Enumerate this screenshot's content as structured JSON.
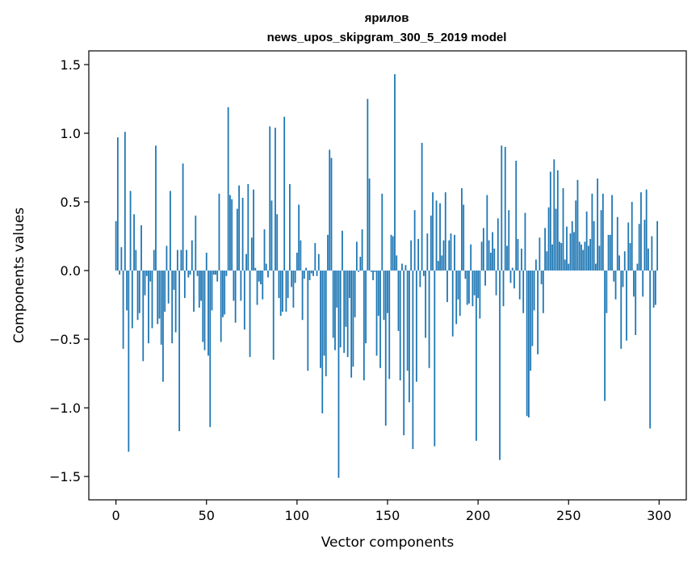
{
  "chart_data": {
    "type": "bar",
    "title": "ярилов",
    "subtitle": "news_upos_skipgram_300_5_2019 model",
    "xlabel": "Vector components",
    "ylabel": "Components values",
    "xlim": [
      -15,
      315
    ],
    "ylim": [
      -1.67,
      1.6
    ],
    "xticks": [
      0,
      50,
      100,
      150,
      200,
      250,
      300
    ],
    "yticks": [
      -1.5,
      -1.0,
      -0.5,
      0.0,
      0.5,
      1.0,
      1.5
    ],
    "ytick_labels": [
      "−1.5",
      "−1.0",
      "−0.5",
      "0.0",
      "0.5",
      "1.0",
      "1.5"
    ],
    "grid": false,
    "bar_color": "#1f77b4",
    "values": [
      0.36,
      0.97,
      -0.03,
      0.17,
      -0.57,
      1.01,
      -0.29,
      -1.32,
      0.58,
      -0.42,
      0.41,
      0.15,
      -0.36,
      -0.31,
      0.33,
      -0.66,
      -0.18,
      -0.04,
      -0.53,
      -0.08,
      -0.42,
      0.15,
      0.91,
      -0.39,
      -0.35,
      -0.54,
      -0.81,
      -0.3,
      0.18,
      -0.24,
      0.58,
      -0.53,
      -0.14,
      -0.45,
      0.15,
      -1.17,
      0.15,
      0.78,
      -0.2,
      0.15,
      -0.05,
      -0.03,
      0.22,
      -0.3,
      0.4,
      -0.04,
      -0.27,
      -0.22,
      -0.52,
      -0.58,
      0.13,
      -0.62,
      -1.14,
      -0.29,
      -0.03,
      -0.03,
      -0.08,
      0.56,
      -0.52,
      -0.34,
      -0.32,
      -0.04,
      1.19,
      0.55,
      0.52,
      -0.22,
      -0.38,
      0.45,
      0.62,
      -0.22,
      0.53,
      -0.43,
      0.12,
      0.63,
      -0.63,
      0.24,
      0.59,
      0.02,
      -0.25,
      -0.08,
      -0.1,
      -0.21,
      0.3,
      0.05,
      -0.05,
      1.05,
      0.51,
      -0.65,
      1.04,
      0.41,
      -0.2,
      -0.33,
      -0.3,
      1.12,
      -0.3,
      -0.2,
      0.63,
      -0.12,
      -0.27,
      -0.09,
      0.13,
      0.48,
      0.22,
      -0.36,
      -0.06,
      0.02,
      -0.73,
      -0.07,
      -0.02,
      -0.04,
      0.2,
      -0.04,
      0.12,
      -0.71,
      -1.04,
      -0.62,
      -0.77,
      0.26,
      0.88,
      0.82,
      -0.49,
      -0.58,
      -0.27,
      -1.51,
      -0.56,
      0.29,
      -0.6,
      -0.41,
      -0.63,
      -0.2,
      -0.78,
      -0.7,
      -0.34,
      0.21,
      -0.01,
      0.1,
      0.3,
      -0.8,
      -0.53,
      1.25,
      0.67,
      -0.01,
      -0.07,
      -0.01,
      -0.62,
      -0.33,
      -0.71,
      0.56,
      -0.36,
      -1.13,
      -0.31,
      -0.79,
      0.26,
      0.25,
      1.43,
      0.11,
      -0.44,
      -0.8,
      0.05,
      -1.2,
      0.04,
      -0.73,
      -0.96,
      0.22,
      -1.3,
      0.44,
      -0.81,
      0.23,
      -0.12,
      0.93,
      -0.04,
      -0.49,
      0.27,
      -0.71,
      0.4,
      0.57,
      -1.28,
      0.51,
      0.07,
      0.49,
      0.11,
      0.22,
      0.57,
      -0.23,
      0.22,
      0.27,
      -0.48,
      0.26,
      -0.39,
      -0.21,
      -0.33,
      0.6,
      0.48,
      -0.06,
      -0.25,
      -0.24,
      0.19,
      -0.26,
      -0.18,
      -1.24,
      -0.2,
      -0.35,
      0.21,
      0.31,
      -0.11,
      0.55,
      0.22,
      0.13,
      0.28,
      0.16,
      -0.18,
      0.38,
      -1.38,
      0.91,
      -0.26,
      0.9,
      0.18,
      0.44,
      -0.09,
      0.02,
      -0.13,
      0.8,
      0.23,
      -0.21,
      0.16,
      -0.31,
      0.42,
      -1.06,
      -1.07,
      -0.73,
      -0.55,
      -0.29,
      0.08,
      -0.61,
      0.24,
      -0.1,
      -0.31,
      0.31,
      0.14,
      0.46,
      0.72,
      0.19,
      0.81,
      0.45,
      0.73,
      0.21,
      0.2,
      0.6,
      0.08,
      0.32,
      0.05,
      0.27,
      0.36,
      0.28,
      0.51,
      0.66,
      0.21,
      0.19,
      0.15,
      0.21,
      0.43,
      0.18,
      0.23,
      0.56,
      0.36,
      0.05,
      0.67,
      0.18,
      0.44,
      0.56,
      -0.95,
      -0.31,
      0.26,
      0.26,
      0.55,
      -0.08,
      -0.21,
      0.39,
      0.11,
      -0.57,
      -0.12,
      0.14,
      -0.51,
      0.35,
      0.2,
      0.5,
      -0.19,
      -0.47,
      0.05,
      0.34,
      0.57,
      -0.19,
      0.37,
      0.59,
      0.16,
      -1.15,
      0.25,
      -0.27,
      -0.25,
      0.36
    ]
  }
}
